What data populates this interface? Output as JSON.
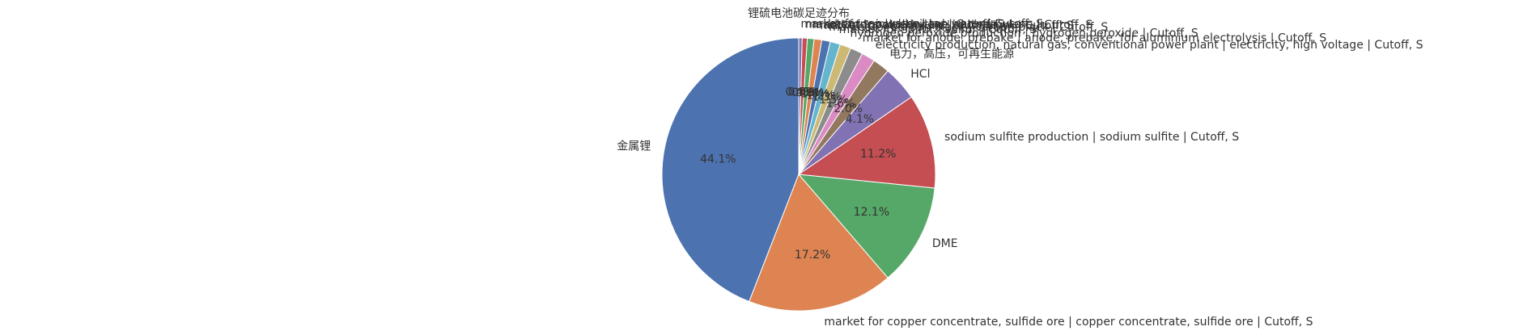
{
  "chart_data": {
    "type": "pie",
    "title": "锂硫电池碳足迹分布",
    "categories": [
      "金属锂",
      "market for copper concentrate, sulfide ore | copper concentrate, sulfide ore | Cutoff, S",
      "DME",
      "sodium sulfite production | sodium sulfite | Cutoff, S",
      "HCl",
      "电力，高压，可再生能源",
      "electricity production, natural gas, conventional power plant | electricity, high voltage | Cutoff, S",
      "market for anode, prebake | anode, prebake, for aluminium electrolysis | Cutoff, S",
      "hydrogen peroxide production | hydrogen peroxide | Cutoff, S",
      "market for sulfur | sulfur | Cutoff, S",
      "market for carbon black | carbon black | Cutoff, S",
      "market for aluminium | aluminium | Cutoff, S",
      "market for polyethylene | polyethylene | Cutoff, S",
      "market for nickel | nickel | Cutoff, S",
      "market for tap water | tap water | Cutoff, S"
    ],
    "values": [
      44.1,
      17.2,
      12.1,
      11.2,
      4.1,
      2.0,
      1.6,
      1.5,
      1.3,
      1.2,
      1.0,
      0.9,
      0.8,
      0.6,
      0.4
    ],
    "value_labels": [
      "44.1%",
      "17.2%",
      "12.1%",
      "11.2%",
      "4.1%",
      "2.0%",
      "1.6%",
      "1.5%",
      "1.3%",
      "1.2%",
      "1.0%",
      "0.9%",
      "0.8%",
      "0.6%",
      "0.4%"
    ],
    "colors": [
      "#4c72b0",
      "#dd8452",
      "#55a868",
      "#c44e52",
      "#8172b3",
      "#937860",
      "#da8bc3",
      "#8c8c8c",
      "#ccb974",
      "#64b5cd",
      "#4c72b0",
      "#dd8452",
      "#55a868",
      "#c44e52",
      "#8172b3"
    ],
    "start_angle": 90
  }
}
